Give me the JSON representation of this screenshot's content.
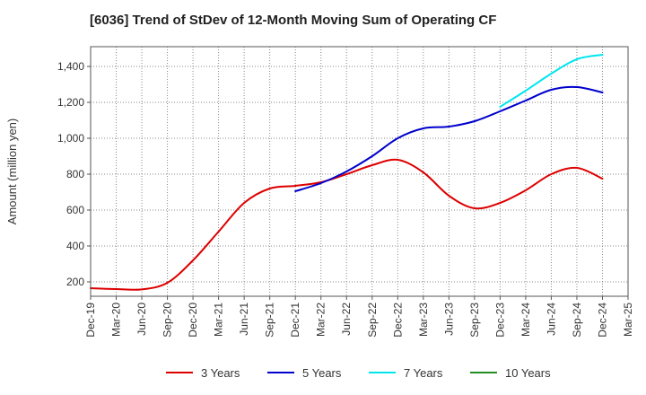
{
  "chart_data": {
    "type": "line",
    "title": "[6036]  Trend of StDev of 12-Month Moving Sum of Operating CF",
    "xlabel": "",
    "ylabel": "Amount (million yen)",
    "ylim": [
      120,
      1510
    ],
    "yticks": [
      200,
      400,
      600,
      800,
      1000,
      1200,
      1400
    ],
    "ytick_labels": [
      "200",
      "400",
      "600",
      "800",
      "1,000",
      "1,200",
      "1,400"
    ],
    "categories": [
      "Dec-19",
      "Mar-20",
      "Jun-20",
      "Sep-20",
      "Dec-20",
      "Mar-21",
      "Jun-21",
      "Sep-21",
      "Dec-21",
      "Mar-22",
      "Jun-22",
      "Sep-22",
      "Dec-22",
      "Mar-23",
      "Jun-23",
      "Sep-23",
      "Dec-23",
      "Mar-24",
      "Jun-24",
      "Sep-24",
      "Dec-24",
      "Mar-25"
    ],
    "grid": true,
    "legend_position": "bottom",
    "series": [
      {
        "name": "3 Years",
        "color": "#dd0000",
        "values": [
          165,
          160,
          158,
          195,
          320,
          480,
          640,
          720,
          735,
          755,
          800,
          850,
          880,
          810,
          680,
          610,
          640,
          710,
          800,
          835,
          775,
          null
        ]
      },
      {
        "name": "5 Years",
        "color": "#0000cc",
        "values": [
          null,
          null,
          null,
          null,
          null,
          null,
          null,
          null,
          705,
          750,
          815,
          900,
          1000,
          1055,
          1065,
          1095,
          1150,
          1210,
          1270,
          1285,
          1255,
          null
        ]
      },
      {
        "name": "7 Years",
        "color": "#00e5ee",
        "values": [
          null,
          null,
          null,
          null,
          null,
          null,
          null,
          null,
          null,
          null,
          null,
          null,
          null,
          null,
          null,
          null,
          1175,
          1265,
          1360,
          1440,
          1465,
          null
        ]
      },
      {
        "name": "10 Years",
        "color": "#228b22",
        "values": [
          null,
          null,
          null,
          null,
          null,
          null,
          null,
          null,
          null,
          null,
          null,
          null,
          null,
          null,
          null,
          null,
          null,
          null,
          null,
          null,
          null,
          null
        ]
      }
    ]
  }
}
